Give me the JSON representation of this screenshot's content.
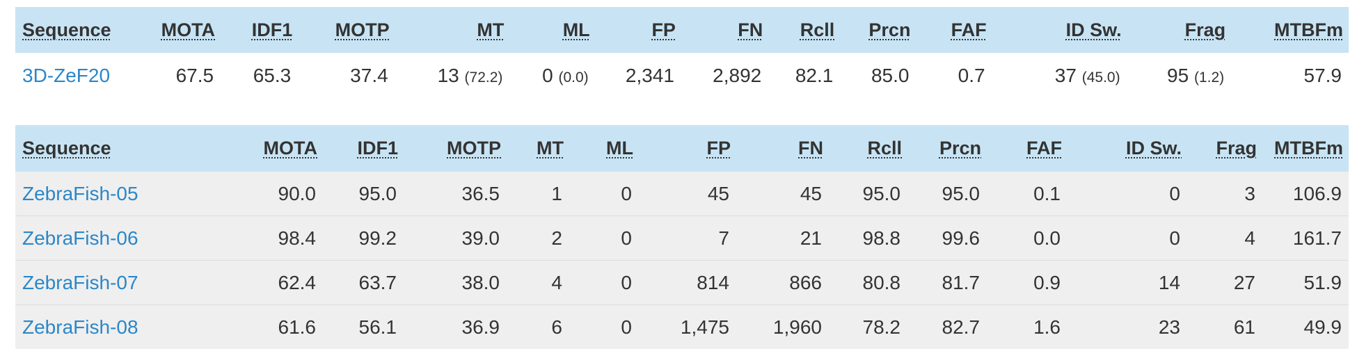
{
  "summary": {
    "headers": [
      "Sequence",
      "MOTA",
      "IDF1",
      "MOTP",
      "MT",
      "ML",
      "FP",
      "FN",
      "Rcll",
      "Prcn",
      "FAF",
      "ID Sw.",
      "Frag",
      "MTBFm"
    ],
    "row": {
      "sequence": "3D-ZeF20",
      "mota": "67.5",
      "idf1": "65.3",
      "motp": "37.4",
      "mt": "13",
      "mt_pct": "(72.2)",
      "ml": "0",
      "ml_pct": "(0.0)",
      "fp": "2,341",
      "fn": "2,892",
      "rcll": "82.1",
      "prcn": "85.0",
      "faf": "0.7",
      "idsw": "37",
      "idsw_pct": "(45.0)",
      "frag": "95",
      "frag_pct": "(1.2)",
      "mtbfm": "57.9"
    }
  },
  "detail": {
    "headers": [
      "Sequence",
      "MOTA",
      "IDF1",
      "MOTP",
      "MT",
      "ML",
      "FP",
      "FN",
      "Rcll",
      "Prcn",
      "FAF",
      "ID Sw.",
      "Frag",
      "MTBFm"
    ],
    "rows": [
      [
        "ZebraFish-05",
        "90.0",
        "95.0",
        "36.5",
        "1",
        "0",
        "45",
        "45",
        "95.0",
        "95.0",
        "0.1",
        "0",
        "3",
        "106.9"
      ],
      [
        "ZebraFish-06",
        "98.4",
        "99.2",
        "39.0",
        "2",
        "0",
        "7",
        "21",
        "98.8",
        "99.6",
        "0.0",
        "0",
        "4",
        "161.7"
      ],
      [
        "ZebraFish-07",
        "62.4",
        "63.7",
        "38.0",
        "4",
        "0",
        "814",
        "866",
        "80.8",
        "81.7",
        "0.9",
        "14",
        "27",
        "51.9"
      ],
      [
        "ZebraFish-08",
        "61.6",
        "56.1",
        "36.9",
        "6",
        "0",
        "1,475",
        "1,960",
        "78.2",
        "82.7",
        "1.6",
        "23",
        "61",
        "49.9"
      ]
    ]
  },
  "colors": {
    "header_bg": "#c8e4f4",
    "row_bg": "#efefef",
    "link": "#2b87c8"
  }
}
